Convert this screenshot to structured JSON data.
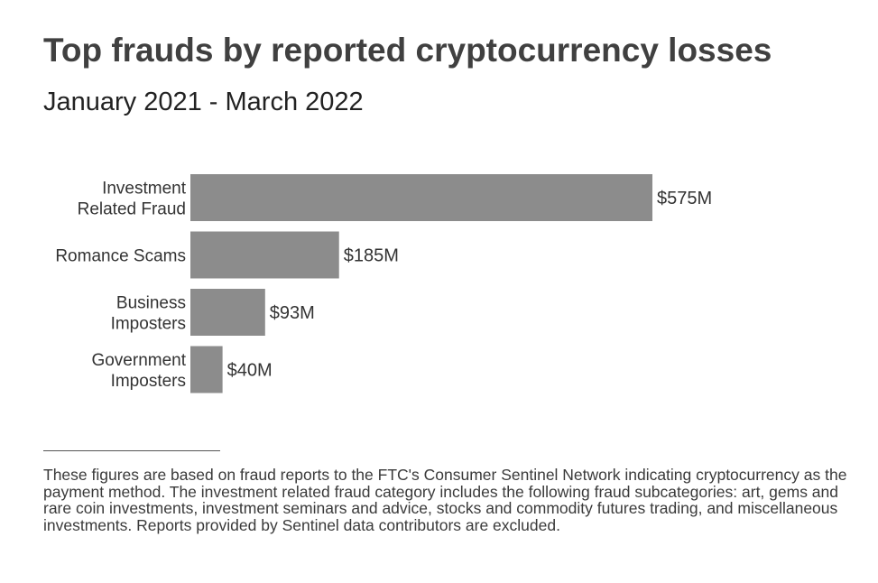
{
  "chart_data": {
    "type": "bar",
    "orientation": "horizontal",
    "title": "Top frauds by reported cryptocurrency losses",
    "subtitle": "January 2021 - March 2022",
    "categories": [
      [
        "Investment",
        "Related Fraud"
      ],
      [
        "Romance Scams"
      ],
      [
        "Business",
        "Imposters"
      ],
      [
        "Government",
        "Imposters"
      ]
    ],
    "values": [
      575,
      185,
      93,
      40
    ],
    "value_labels": [
      "$575M",
      "$185M",
      "$93M",
      "$40M"
    ],
    "unit": "$M",
    "xlim": [
      0,
      575
    ],
    "grid": false,
    "legend": "none",
    "bar_color": "#8c8c8c"
  },
  "footnote": "These figures are based on fraud reports to the FTC's Consumer Sentinel Network indicating cryptocurrency as the payment method. The investment related fraud category includes the following fraud subcategories: art, gems and rare coin investments, investment seminars and advice, stocks and commodity futures trading, and miscellaneous investments. Reports provided by Sentinel data contributors are excluded."
}
